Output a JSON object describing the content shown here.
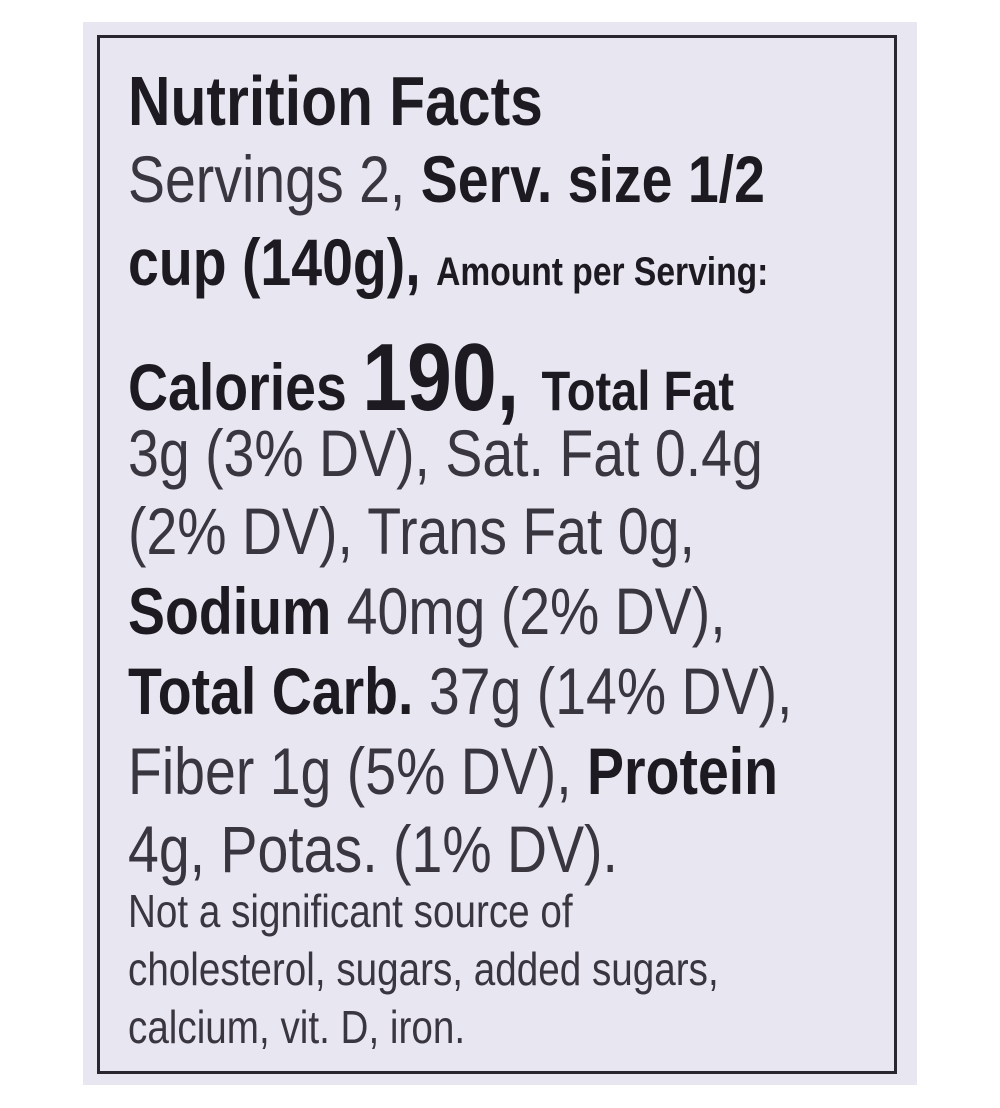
{
  "label": {
    "lines": [
      [
        {
          "text": "Nutrition Facts",
          "bold": true
        }
      ],
      [
        {
          "text": "Servings 2, ",
          "bold": false
        },
        {
          "text": "Serv. size 1/2",
          "bold": true
        }
      ],
      [
        {
          "text": "cup (140g), ",
          "bold": true
        },
        {
          "text": "Amount per Serving:",
          "bold": true
        }
      ],
      [
        {
          "text": "Calories ",
          "bold": true
        },
        {
          "text": "190, ",
          "bold": true
        },
        {
          "text": "Total Fat",
          "bold": true
        }
      ],
      [
        {
          "text": "3g (3% DV), Sat. Fat 0.4g",
          "bold": false
        }
      ],
      [
        {
          "text": "(2% DV), Trans Fat 0g,",
          "bold": false
        }
      ],
      [
        {
          "text": "Sodium",
          "bold": true
        },
        {
          "text": " 40mg (2% DV),",
          "bold": false
        }
      ],
      [
        {
          "text": "Total Carb.",
          "bold": true
        },
        {
          "text": " 37g (14% DV),",
          "bold": false
        }
      ],
      [
        {
          "text": "Fiber 1g (5% DV), ",
          "bold": false
        },
        {
          "text": "Protein",
          "bold": true
        }
      ],
      [
        {
          "text": "4g, Potas. (1% DV).",
          "bold": false
        }
      ],
      [
        {
          "text": "Not a significant source of",
          "bold": false
        }
      ],
      [
        {
          "text": "cholesterol, sugars, added sugars,",
          "bold": false
        }
      ],
      [
        {
          "text": "calcium, vit. D, iron.",
          "bold": false
        }
      ]
    ]
  }
}
